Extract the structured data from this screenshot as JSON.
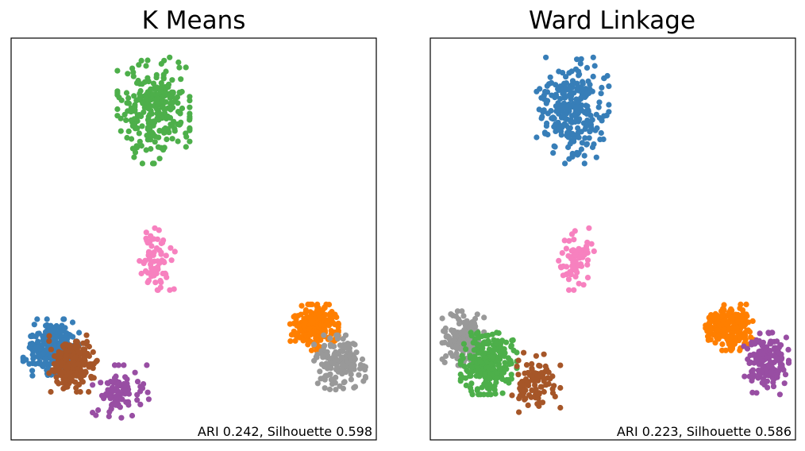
{
  "chart_data": [
    {
      "type": "scatter",
      "title": "K Means",
      "xlabel": "",
      "ylabel": "",
      "xlim": [
        0,
        100
      ],
      "ylim": [
        0,
        100
      ],
      "ticks": "none",
      "grid": false,
      "annotation": "ARI 0.242, Silhouette 0.598",
      "annotation_position": "bottom-right",
      "clusters": [
        {
          "color": "#4daf4a",
          "center": [
            39,
            82
          ],
          "spread": [
            4.5,
            6
          ],
          "count": 260
        },
        {
          "color": "#f781bf",
          "center": [
            40,
            45
          ],
          "spread": [
            2.2,
            3.5
          ],
          "count": 70
        },
        {
          "color": "#377eb8",
          "center": [
            11,
            23
          ],
          "spread": [
            3.5,
            3.2
          ],
          "count": 230
        },
        {
          "color": "#a65628",
          "center": [
            17,
            19
          ],
          "spread": [
            3,
            3.2
          ],
          "count": 220
        },
        {
          "color": "#984ea3",
          "center": [
            30,
            12
          ],
          "spread": [
            3.5,
            3
          ],
          "count": 90
        },
        {
          "color": "#ff7f00",
          "center": [
            83,
            28
          ],
          "spread": [
            3,
            2.6
          ],
          "count": 230
        },
        {
          "color": "#999999",
          "center": [
            90,
            19
          ],
          "spread": [
            3.2,
            3.2
          ],
          "count": 150
        }
      ]
    },
    {
      "type": "scatter",
      "title": "Ward Linkage",
      "xlabel": "",
      "ylabel": "",
      "xlim": [
        0,
        100
      ],
      "ylim": [
        0,
        100
      ],
      "ticks": "none",
      "grid": false,
      "annotation": "ARI 0.223, Silhouette 0.586",
      "annotation_position": "bottom-right",
      "clusters": [
        {
          "color": "#377eb8",
          "center": [
            39,
            82
          ],
          "spread": [
            4.5,
            6
          ],
          "count": 260
        },
        {
          "color": "#f781bf",
          "center": [
            40,
            45
          ],
          "spread": [
            2.2,
            3.5
          ],
          "count": 70
        },
        {
          "color": "#999999",
          "center": [
            9,
            25
          ],
          "spread": [
            2.6,
            3.2
          ],
          "count": 170
        },
        {
          "color": "#4daf4a",
          "center": [
            16,
            19
          ],
          "spread": [
            3.5,
            3.5
          ],
          "count": 260
        },
        {
          "color": "#a65628",
          "center": [
            29,
            14
          ],
          "spread": [
            3,
            3.5
          ],
          "count": 90
        },
        {
          "color": "#ff7f00",
          "center": [
            82,
            28
          ],
          "spread": [
            3,
            2.6
          ],
          "count": 230
        },
        {
          "color": "#984ea3",
          "center": [
            92,
            19
          ],
          "spread": [
            2.8,
            3.5
          ],
          "count": 150
        }
      ]
    }
  ]
}
